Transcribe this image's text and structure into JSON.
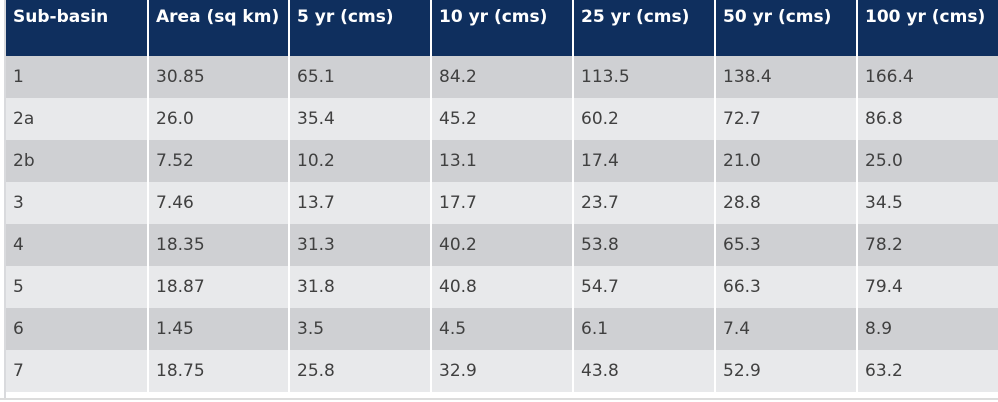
{
  "table": {
    "headers": [
      "Sub-basin",
      "Area (sq km)",
      "5 yr (cms)",
      "10 yr (cms)",
      "25 yr (cms)",
      "50 yr (cms)",
      "100 yr (cms)"
    ],
    "rows": [
      [
        "1",
        "30.85",
        "65.1",
        "84.2",
        "113.5",
        "138.4",
        "166.4"
      ],
      [
        "2a",
        "26.0",
        "35.4",
        "45.2",
        "60.2",
        "72.7",
        "86.8"
      ],
      [
        "2b",
        "7.52",
        "10.2",
        "13.1",
        "17.4",
        "21.0",
        "25.0"
      ],
      [
        "3",
        "7.46",
        "13.7",
        "17.7",
        "23.7",
        "28.8",
        "34.5"
      ],
      [
        "4",
        "18.35",
        "31.3",
        "40.2",
        "53.8",
        "65.3",
        "78.2"
      ],
      [
        "5",
        "18.87",
        "31.8",
        "40.8",
        "54.7",
        "66.3",
        "79.4"
      ],
      [
        "6",
        "1.45",
        "3.5",
        "4.5",
        "6.1",
        "7.4",
        "8.9"
      ],
      [
        "7",
        "18.75",
        "25.8",
        "32.9",
        "43.8",
        "52.9",
        "63.2"
      ]
    ]
  }
}
